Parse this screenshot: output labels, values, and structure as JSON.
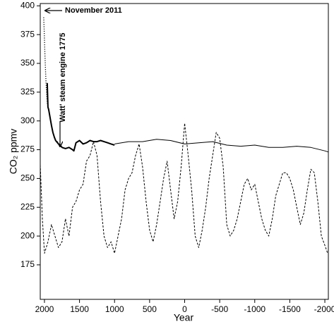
{
  "chart_data": {
    "type": "line",
    "x_label": "Year",
    "y_label": "CO₂ ppmv",
    "annotations": [
      "November 2011",
      "Watt' steam engine 1775"
    ],
    "xlim": [
      2060,
      -2050
    ],
    "xticks": [
      2000,
      1500,
      1000,
      500,
      0,
      -500,
      -1000,
      -1500,
      -2000
    ],
    "ylim": [
      145,
      402
    ],
    "yticks": [
      175,
      200,
      225,
      250,
      275,
      300,
      325,
      350,
      375,
      400
    ],
    "series": [
      {
        "color": "#000000",
        "line_style": "dotted",
        "line_width": 1.3,
        "x": [
          2011,
          2005,
          1995,
          1985,
          1975,
          1965,
          1958
        ],
        "values": [
          390,
          380,
          360,
          345,
          330,
          320,
          315
        ]
      },
      {
        "color": "#000000",
        "line_style": "solid",
        "line_width": 2,
        "x": [
          1960,
          1950,
          1940,
          1920,
          1900,
          1880,
          1860,
          1840,
          1800,
          1775,
          1750,
          1700,
          1650,
          1600,
          1580,
          1550,
          1500,
          1450,
          1400,
          1350,
          1300,
          1250,
          1200,
          1150,
          1100,
          1050,
          1000
        ],
        "values": [
          333,
          312,
          310,
          303,
          296,
          290,
          286,
          283,
          280,
          279,
          277,
          276,
          277,
          275,
          274,
          281,
          283,
          280,
          281,
          283,
          282,
          282,
          283,
          282,
          281,
          280,
          279
        ]
      },
      {
        "color": "#000000",
        "line_style": "solid",
        "line_width": 1,
        "x": [
          1000,
          800,
          600,
          400,
          200,
          0,
          -200,
          -400,
          -600,
          -800,
          -1000,
          -1200,
          -1400,
          -1600,
          -1800,
          -2000,
          -2050
        ],
        "values": [
          280,
          282,
          282,
          284,
          283,
          280,
          281,
          282,
          279,
          278,
          279,
          277,
          277,
          278,
          277,
          274,
          273
        ]
      },
      {
        "color": "#000000",
        "line_style": "dashed",
        "line_width": 1,
        "x": [
          2060,
          2030,
          2000,
          1950,
          1900,
          1850,
          1800,
          1750,
          1700,
          1650,
          1600,
          1550,
          1500,
          1450,
          1400,
          1350,
          1300,
          1250,
          1200,
          1150,
          1100,
          1050,
          1000,
          950,
          900,
          850,
          800,
          750,
          700,
          650,
          600,
          550,
          500,
          450,
          400,
          350,
          300,
          250,
          200,
          150,
          100,
          50,
          0,
          -50,
          -100,
          -150,
          -200,
          -250,
          -300,
          -350,
          -400,
          -450,
          -500,
          -550,
          -600,
          -650,
          -700,
          -750,
          -800,
          -850,
          -900,
          -950,
          -1000,
          -1050,
          -1100,
          -1150,
          -1200,
          -1250,
          -1300,
          -1350,
          -1400,
          -1450,
          -1500,
          -1550,
          -1600,
          -1650,
          -1700,
          -1750,
          -1800,
          -1850,
          -1900,
          -1950,
          -2000,
          -2040
        ],
        "values": [
          262,
          215,
          185,
          195,
          210,
          200,
          190,
          195,
          215,
          200,
          225,
          230,
          240,
          245,
          265,
          270,
          282,
          270,
          230,
          200,
          190,
          195,
          185,
          200,
          215,
          240,
          250,
          255,
          270,
          280,
          260,
          230,
          205,
          195,
          210,
          230,
          250,
          265,
          240,
          215,
          230,
          260,
          298,
          270,
          240,
          200,
          190,
          205,
          225,
          250,
          270,
          290,
          285,
          260,
          210,
          200,
          205,
          215,
          230,
          245,
          250,
          240,
          245,
          230,
          215,
          205,
          200,
          215,
          235,
          245,
          255,
          255,
          250,
          240,
          225,
          210,
          220,
          240,
          258,
          255,
          230,
          200,
          192,
          185
        ]
      }
    ]
  }
}
